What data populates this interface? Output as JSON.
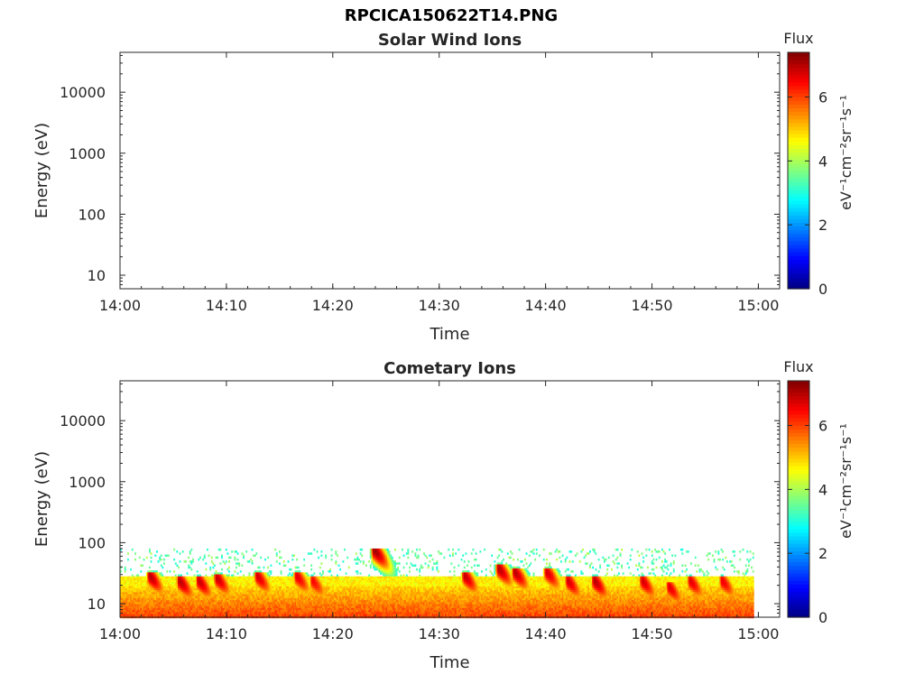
{
  "figure": {
    "title": "RPCICA150622T14.PNG"
  },
  "colors": {
    "axis": "#262626",
    "background": "#ffffff",
    "colormap": "jet"
  },
  "chart_data": [
    {
      "type": "heatmap",
      "title": "Solar Wind Ions",
      "xlabel": "Time",
      "ylabel": "Energy (eV)",
      "y_scale": "log",
      "ylim": [
        6,
        45000
      ],
      "x_range": [
        "14:00",
        "15:02"
      ],
      "x_ticks": [
        "14:00",
        "14:10",
        "14:20",
        "14:30",
        "14:40",
        "14:50",
        "15:00"
      ],
      "y_ticks": [
        "10",
        "100",
        "1000",
        "10000"
      ],
      "colorbar": {
        "title": "Flux",
        "label": "eV⁻¹cm⁻²sr⁻¹s⁻¹",
        "range": [
          0,
          7.4
        ],
        "ticks": [
          "0",
          "2",
          "4",
          "6"
        ]
      },
      "description": "empty",
      "bands": []
    },
    {
      "type": "heatmap",
      "title": "Cometary Ions",
      "xlabel": "Time",
      "ylabel": "Energy (eV)",
      "y_scale": "log",
      "ylim": [
        6,
        45000
      ],
      "x_range": [
        "14:00",
        "15:02"
      ],
      "x_ticks": [
        "14:00",
        "14:10",
        "14:20",
        "14:30",
        "14:40",
        "14:50",
        "15:00"
      ],
      "y_ticks": [
        "10",
        "100",
        "1000",
        "10000"
      ],
      "colorbar": {
        "title": "Flux",
        "label": "eV⁻¹cm⁻²sr⁻¹s⁻¹",
        "range": [
          0,
          7.4
        ],
        "ticks": [
          "0",
          "2",
          "4",
          "6"
        ]
      },
      "data_end_time": "14:59.5",
      "background_flux_ceiling_eV": 80,
      "bursts": [
        {
          "time": "14:02.7",
          "peak_eV": 30,
          "flux": 7.0
        },
        {
          "time": "14:05.5",
          "peak_eV": 25,
          "flux": 7.0
        },
        {
          "time": "14:07.3",
          "peak_eV": 25,
          "flux": 6.9
        },
        {
          "time": "14:09.0",
          "peak_eV": 28,
          "flux": 6.9
        },
        {
          "time": "14:12.8",
          "peak_eV": 30,
          "flux": 6.8
        },
        {
          "time": "14:16.5",
          "peak_eV": 30,
          "flux": 6.7
        },
        {
          "time": "14:18.0",
          "peak_eV": 25,
          "flux": 6.5
        },
        {
          "time": "14:23.8",
          "peak_eV": 80,
          "flux": 7.2
        },
        {
          "time": "14:32.3",
          "peak_eV": 30,
          "flux": 6.9
        },
        {
          "time": "14:35.5",
          "peak_eV": 40,
          "flux": 7.0
        },
        {
          "time": "14:37.0",
          "peak_eV": 35,
          "flux": 7.0
        },
        {
          "time": "14:40.0",
          "peak_eV": 35,
          "flux": 6.8
        },
        {
          "time": "14:42.0",
          "peak_eV": 25,
          "flux": 6.8
        },
        {
          "time": "14:44.5",
          "peak_eV": 25,
          "flux": 7.0
        },
        {
          "time": "14:49.0",
          "peak_eV": 25,
          "flux": 6.8
        },
        {
          "time": "14:51.5",
          "peak_eV": 20,
          "flux": 6.7
        },
        {
          "time": "14:53.5",
          "peak_eV": 25,
          "flux": 6.7
        },
        {
          "time": "14:56.5",
          "peak_eV": 25,
          "flux": 6.6
        }
      ]
    }
  ]
}
